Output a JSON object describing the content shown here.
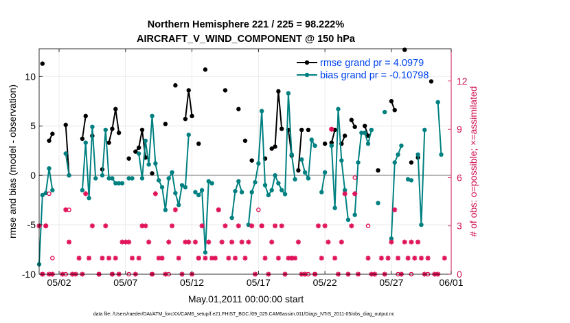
{
  "chart_data": {
    "type": "line",
    "title": "Northern Hemisphere 221 / 225 = 98.222%",
    "subtitle": "AIRCRAFT_V_WIND_COMPONENT @ 150 hPa",
    "xlabel": "May.01,2011 00:00:00 start",
    "ylabel": "rmse and bias (model - observation)",
    "ylabel_right": "# of obs: o=possible; ×=assimilated",
    "footer": "data file: /Users/raeder/DAI/ATM_forcXX/CAM6_setup/f.e21.FHIST_BGC.f09_025.CAM6assim.011/Diags_NTrS_2011-05/obs_diag_output.nc",
    "xlim": [
      0.5,
      31.5
    ],
    "ylim": [
      -10,
      12.8
    ],
    "ylim_right": [
      0,
      14
    ],
    "x_ticks": [
      {
        "value": 2,
        "label": "05/02"
      },
      {
        "value": 7,
        "label": "05/07"
      },
      {
        "value": 12,
        "label": "05/12"
      },
      {
        "value": 17,
        "label": "05/17"
      },
      {
        "value": 22,
        "label": "05/22"
      },
      {
        "value": 27,
        "label": "05/27"
      },
      {
        "value": 32,
        "label": "06/01"
      }
    ],
    "y_ticks": [
      {
        "value": -10,
        "label": "-10"
      },
      {
        "value": -5,
        "label": "-5"
      },
      {
        "value": 0,
        "label": "0"
      },
      {
        "value": 5,
        "label": "5"
      },
      {
        "value": 10,
        "label": "10"
      }
    ],
    "y_ticks_right": [
      {
        "value": 0,
        "label": "0"
      },
      {
        "value": 3,
        "label": "3"
      },
      {
        "value": 6,
        "label": "6"
      },
      {
        "value": 9,
        "label": "9"
      },
      {
        "value": 12,
        "label": "12"
      }
    ],
    "grid": true,
    "legend_position": "top-right",
    "colors": {
      "rmse": "#000000",
      "bias": "#008080",
      "obs": "#e0135a",
      "legend_text": "#0044ee",
      "right_axis": "#d01050",
      "zero_line": "#aaaaaa"
    },
    "series": [
      {
        "name": "rmse grand pr = 4.0979",
        "points": [
          [
            0.75,
            11.3
          ],
          [
            1.25,
            3.5
          ],
          [
            1.5,
            4.2
          ],
          [
            2.5,
            5.1
          ],
          [
            2.75,
            0
          ],
          [
            3.75,
            3.7
          ],
          [
            4.0,
            6.0
          ],
          [
            4.5,
            4.0
          ],
          [
            5.25,
            0.6
          ],
          [
            5.75,
            3.3
          ],
          [
            6.0,
            4.7
          ],
          [
            6.25,
            6.7
          ],
          [
            6.5,
            4.3
          ],
          [
            7.25,
            1.7
          ],
          [
            7.75,
            2.4
          ],
          [
            8.0,
            2.8
          ],
          [
            8.25,
            4.6
          ],
          [
            8.5,
            1.8
          ],
          [
            9.0,
            0.2
          ],
          [
            10.0,
            5.2
          ],
          [
            10.75,
            9.1
          ],
          [
            11.5,
            5.7
          ],
          [
            11.75,
            8.6
          ],
          [
            12.0,
            6.0
          ],
          [
            12.5,
            3.2
          ],
          [
            13.0,
            10.7
          ],
          [
            14.5,
            8.6
          ],
          [
            15.5,
            6.7
          ],
          [
            16.0,
            3.5
          ],
          [
            16.5,
            1.5
          ],
          [
            17.5,
            1.7
          ],
          [
            18.0,
            2.7
          ],
          [
            18.25,
            2.9
          ],
          [
            18.5,
            8.5
          ],
          [
            18.75,
            4.7
          ],
          [
            19.25,
            4.6
          ],
          [
            19.5,
            2.0
          ],
          [
            20.0,
            0.5
          ],
          [
            20.25,
            4.6
          ],
          [
            20.75,
            4.6
          ],
          [
            22.0,
            3.2
          ],
          [
            22.5,
            3.3
          ],
          [
            22.75,
            4.6
          ],
          [
            23.25,
            3.2
          ],
          [
            23.5,
            4.0
          ],
          [
            24.0,
            5.6
          ],
          [
            24.25,
            4.9
          ],
          [
            25.0,
            5.0
          ],
          [
            25.25,
            4.0
          ],
          [
            26.0,
            0.5
          ],
          [
            27.0,
            7.5
          ],
          [
            27.25,
            6.6
          ],
          [
            28.0,
            12.7
          ],
          [
            28.5,
            1.3
          ],
          [
            29.0,
            1.8
          ],
          [
            30.0,
            9.5
          ]
        ]
      },
      {
        "name": "bias grand pr = -0.10798",
        "points": [
          [
            0.5,
            -9.0
          ],
          [
            0.75,
            -2.0
          ],
          [
            1.0,
            -1.8
          ],
          [
            1.25,
            0.7
          ],
          [
            1.5,
            -1.5
          ],
          [
            2.5,
            2.2
          ],
          [
            2.75,
            0.0
          ],
          [
            3.75,
            -1.5
          ],
          [
            4.0,
            3.3
          ],
          [
            4.25,
            -2.3
          ],
          [
            4.5,
            4.9
          ],
          [
            4.75,
            -0.3
          ],
          [
            5.25,
            0.0
          ],
          [
            5.5,
            4.6
          ],
          [
            5.75,
            -0.3
          ],
          [
            6.0,
            -0.3
          ],
          [
            6.25,
            -0.8
          ],
          [
            6.5,
            -0.8
          ],
          [
            6.75,
            -0.8
          ],
          [
            7.25,
            -0.3
          ],
          [
            7.5,
            -0.3
          ],
          [
            8.0,
            2.2
          ],
          [
            8.25,
            -0.3
          ],
          [
            8.5,
            3.5
          ],
          [
            8.75,
            1.1
          ],
          [
            9.0,
            6.0
          ],
          [
            9.25,
            1.2
          ],
          [
            9.5,
            -0.5
          ],
          [
            9.75,
            -1.2
          ],
          [
            10.0,
            -3.5
          ],
          [
            10.25,
            -0.3
          ],
          [
            10.5,
            0.3
          ],
          [
            10.75,
            -1.8
          ],
          [
            11.0,
            -3.0
          ],
          [
            11.25,
            -1.0
          ],
          [
            11.5,
            -1.2
          ],
          [
            11.75,
            4.1
          ],
          [
            12.25,
            -1.7
          ],
          [
            12.5,
            -2.0
          ],
          [
            12.75,
            -1.5
          ],
          [
            13.0,
            -7.8
          ],
          [
            13.25,
            -0.6
          ],
          [
            13.5,
            -0.8
          ],
          [
            15.0,
            -4.3
          ],
          [
            15.25,
            -1.6
          ],
          [
            15.5,
            -0.6
          ],
          [
            15.75,
            -1.7
          ],
          [
            16.25,
            -5.0
          ],
          [
            16.5,
            -1.7
          ],
          [
            16.75,
            -0.7
          ],
          [
            17.0,
            1.2
          ],
          [
            17.25,
            6.5
          ],
          [
            17.5,
            -1.0
          ],
          [
            17.75,
            -2.0
          ],
          [
            18.0,
            -1.5
          ],
          [
            18.25,
            0.0
          ],
          [
            18.5,
            -0.8
          ],
          [
            18.75,
            -1.5
          ],
          [
            19.0,
            -1.9
          ],
          [
            19.25,
            8.3
          ],
          [
            19.5,
            2.1
          ],
          [
            19.75,
            -0.4
          ],
          [
            20.25,
            1.6
          ],
          [
            20.5,
            0.3
          ],
          [
            20.75,
            -0.3
          ],
          [
            21.0,
            3.6
          ],
          [
            21.25,
            3.0
          ],
          [
            21.75,
            -1.7
          ],
          [
            22.0,
            0.3
          ],
          [
            22.5,
            3.0
          ],
          [
            22.75,
            -3.3
          ],
          [
            23.0,
            6.7
          ],
          [
            23.25,
            1.5
          ],
          [
            23.5,
            -1.5
          ],
          [
            23.75,
            -4.5
          ],
          [
            24.25,
            -4.0
          ],
          [
            24.5,
            1.3
          ],
          [
            24.75,
            4.3
          ],
          [
            25.0,
            4.3
          ],
          [
            25.25,
            3.2
          ],
          [
            25.5,
            4.6
          ],
          [
            26.0,
            -2.8
          ],
          [
            26.5,
            6.4
          ],
          [
            27.0,
            -6.4
          ],
          [
            27.25,
            1.3
          ],
          [
            27.5,
            2.1
          ],
          [
            27.75,
            3.0
          ],
          [
            28.25,
            -0.4
          ],
          [
            28.5,
            -0.5
          ],
          [
            29.0,
            2.1
          ],
          [
            29.25,
            -5.0
          ],
          [
            29.5,
            4.6
          ],
          [
            30.5,
            7.4
          ],
          [
            30.75,
            2.1
          ]
        ]
      },
      {
        "name": "assimilated",
        "points": [
          [
            0.5,
            3
          ],
          [
            0.75,
            0
          ],
          [
            1.0,
            3
          ],
          [
            1.25,
            0
          ],
          [
            1.5,
            0
          ],
          [
            2.25,
            0
          ],
          [
            2.5,
            4
          ],
          [
            2.75,
            2
          ],
          [
            3.0,
            0
          ],
          [
            3.25,
            0
          ],
          [
            3.5,
            1
          ],
          [
            3.75,
            0
          ],
          [
            4.0,
            5
          ],
          [
            4.25,
            1
          ],
          [
            4.5,
            3
          ],
          [
            5.0,
            0
          ],
          [
            5.25,
            1
          ],
          [
            5.5,
            3
          ],
          [
            5.75,
            1
          ],
          [
            6.0,
            0
          ],
          [
            6.25,
            1
          ],
          [
            6.5,
            0
          ],
          [
            6.75,
            2
          ],
          [
            7.0,
            2
          ],
          [
            7.25,
            2
          ],
          [
            7.5,
            1
          ],
          [
            7.75,
            0
          ],
          [
            8.0,
            1
          ],
          [
            8.25,
            3
          ],
          [
            8.5,
            3
          ],
          [
            8.75,
            2
          ],
          [
            9.0,
            0
          ],
          [
            9.25,
            5
          ],
          [
            9.5,
            1
          ],
          [
            9.75,
            1
          ],
          [
            10.0,
            0
          ],
          [
            10.25,
            2
          ],
          [
            10.5,
            3
          ],
          [
            10.75,
            4
          ],
          [
            11.0,
            1
          ],
          [
            11.25,
            0
          ],
          [
            11.5,
            2
          ],
          [
            11.75,
            2
          ],
          [
            12.0,
            0
          ],
          [
            12.25,
            2
          ],
          [
            12.5,
            1
          ],
          [
            12.75,
            3
          ],
          [
            13.0,
            1
          ],
          [
            13.25,
            2
          ],
          [
            13.5,
            1
          ],
          [
            13.75,
            1
          ],
          [
            14.0,
            4
          ],
          [
            14.25,
            2
          ],
          [
            14.5,
            3
          ],
          [
            14.75,
            1
          ],
          [
            15.0,
            2
          ],
          [
            15.25,
            1
          ],
          [
            15.5,
            3
          ],
          [
            15.75,
            2
          ],
          [
            16.0,
            1
          ],
          [
            16.25,
            2
          ],
          [
            16.5,
            3
          ],
          [
            16.75,
            0
          ],
          [
            17.25,
            3
          ],
          [
            17.5,
            1
          ],
          [
            17.75,
            0
          ],
          [
            18.0,
            2
          ],
          [
            18.25,
            3
          ],
          [
            18.5,
            1
          ],
          [
            18.75,
            3
          ],
          [
            19.0,
            0
          ],
          [
            19.25,
            1
          ],
          [
            19.5,
            1
          ],
          [
            19.75,
            1
          ],
          [
            20.0,
            2
          ],
          [
            20.25,
            0
          ],
          [
            20.5,
            0
          ],
          [
            21.25,
            0
          ],
          [
            21.5,
            3
          ],
          [
            21.75,
            1
          ],
          [
            22.0,
            3
          ],
          [
            22.25,
            2
          ],
          [
            22.5,
            9
          ],
          [
            22.75,
            1
          ],
          [
            23.0,
            0
          ],
          [
            23.25,
            2
          ],
          [
            23.5,
            5
          ],
          [
            23.75,
            0
          ],
          [
            24.0,
            3
          ],
          [
            24.25,
            5
          ],
          [
            24.5,
            0
          ],
          [
            25.25,
            1
          ],
          [
            25.5,
            0
          ],
          [
            25.75,
            0
          ],
          [
            26.25,
            1
          ],
          [
            26.5,
            0
          ],
          [
            26.75,
            1
          ],
          [
            27.0,
            2
          ],
          [
            27.25,
            4
          ],
          [
            27.5,
            1
          ],
          [
            27.75,
            0
          ],
          [
            28.0,
            2
          ],
          [
            28.25,
            1
          ],
          [
            28.5,
            2
          ],
          [
            28.75,
            1
          ],
          [
            29.0,
            2
          ],
          [
            29.25,
            1
          ],
          [
            29.5,
            0
          ],
          [
            29.75,
            1
          ],
          [
            30.25,
            0
          ],
          [
            30.5,
            0
          ],
          [
            31.0,
            1
          ]
        ]
      },
      {
        "name": "possible",
        "points": [
          [
            0.75,
            0
          ],
          [
            1.0,
            3
          ],
          [
            1.25,
            5
          ],
          [
            1.5,
            1
          ],
          [
            2.5,
            0
          ],
          [
            2.75,
            4
          ],
          [
            5.0,
            0
          ],
          [
            6.0,
            0
          ],
          [
            7.25,
            0
          ],
          [
            9.0,
            0
          ],
          [
            10.25,
            0
          ],
          [
            12.5,
            1
          ],
          [
            14.0,
            4
          ],
          [
            17.0,
            4
          ],
          [
            17.25,
            3
          ],
          [
            19.5,
            1
          ],
          [
            20.75,
            0
          ],
          [
            21.25,
            0
          ],
          [
            22.5,
            9
          ],
          [
            24.25,
            6
          ],
          [
            25.25,
            3
          ],
          [
            27.5,
            0
          ],
          [
            28.5,
            0
          ],
          [
            29.75,
            0
          ]
        ]
      }
    ]
  }
}
